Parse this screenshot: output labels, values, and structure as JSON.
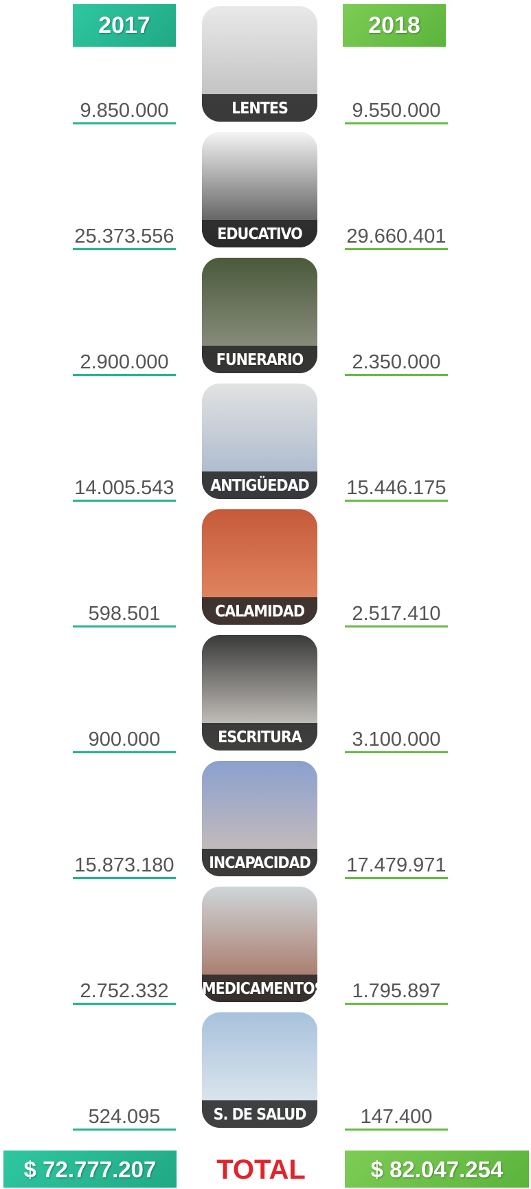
{
  "left_header": "2017",
  "right_header": "2018",
  "rows": [
    {
      "label": "LENTES",
      "value_2017": "9.850.000",
      "value_2018": "9.550.000"
    },
    {
      "label": "EDUCATIVO",
      "value_2017": "25.373.556",
      "value_2018": "29.660.401"
    },
    {
      "label": "FUNERARIO",
      "value_2017": "2.900.000",
      "value_2018": "2.350.000"
    },
    {
      "label": "ANTIGÜEDAD",
      "value_2017": "14.005.543",
      "value_2018": "15.446.175"
    },
    {
      "label": "CALAMIDAD",
      "value_2017": "598.501",
      "value_2018": "2.517.410"
    },
    {
      "label": "ESCRITURA",
      "value_2017": "900.000",
      "value_2018": "3.100.000"
    },
    {
      "label": "INCAPACIDAD",
      "value_2017": "15.873.180",
      "value_2018": "17.479.971"
    },
    {
      "label": "MEDICAMENTOS",
      "value_2017": "2.752.332",
      "value_2018": "1.795.897"
    },
    {
      "label": "S. DE SALUD",
      "value_2017": "524.095",
      "value_2018": "147.400"
    }
  ],
  "total": {
    "label": "TOTAL",
    "value_2017": "$ 72.777.207",
    "value_2018": "$ 82.047.254"
  }
}
